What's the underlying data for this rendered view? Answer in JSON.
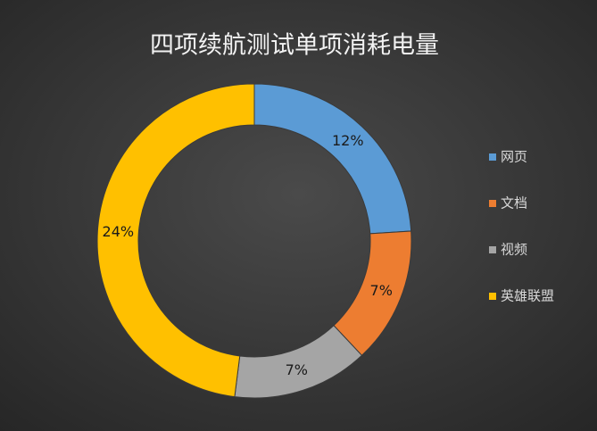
{
  "chart_data": {
    "type": "donut",
    "title": "四项续航测试单项消耗电量",
    "categories": [
      "网页",
      "文档",
      "视频",
      "英雄联盟"
    ],
    "values": [
      12,
      7,
      7,
      24
    ],
    "value_labels": [
      "12%",
      "7%",
      "7%",
      "24%"
    ],
    "colors": [
      "#5b9bd5",
      "#ed7d31",
      "#a5a5a5",
      "#ffc000"
    ],
    "legend": "right"
  }
}
